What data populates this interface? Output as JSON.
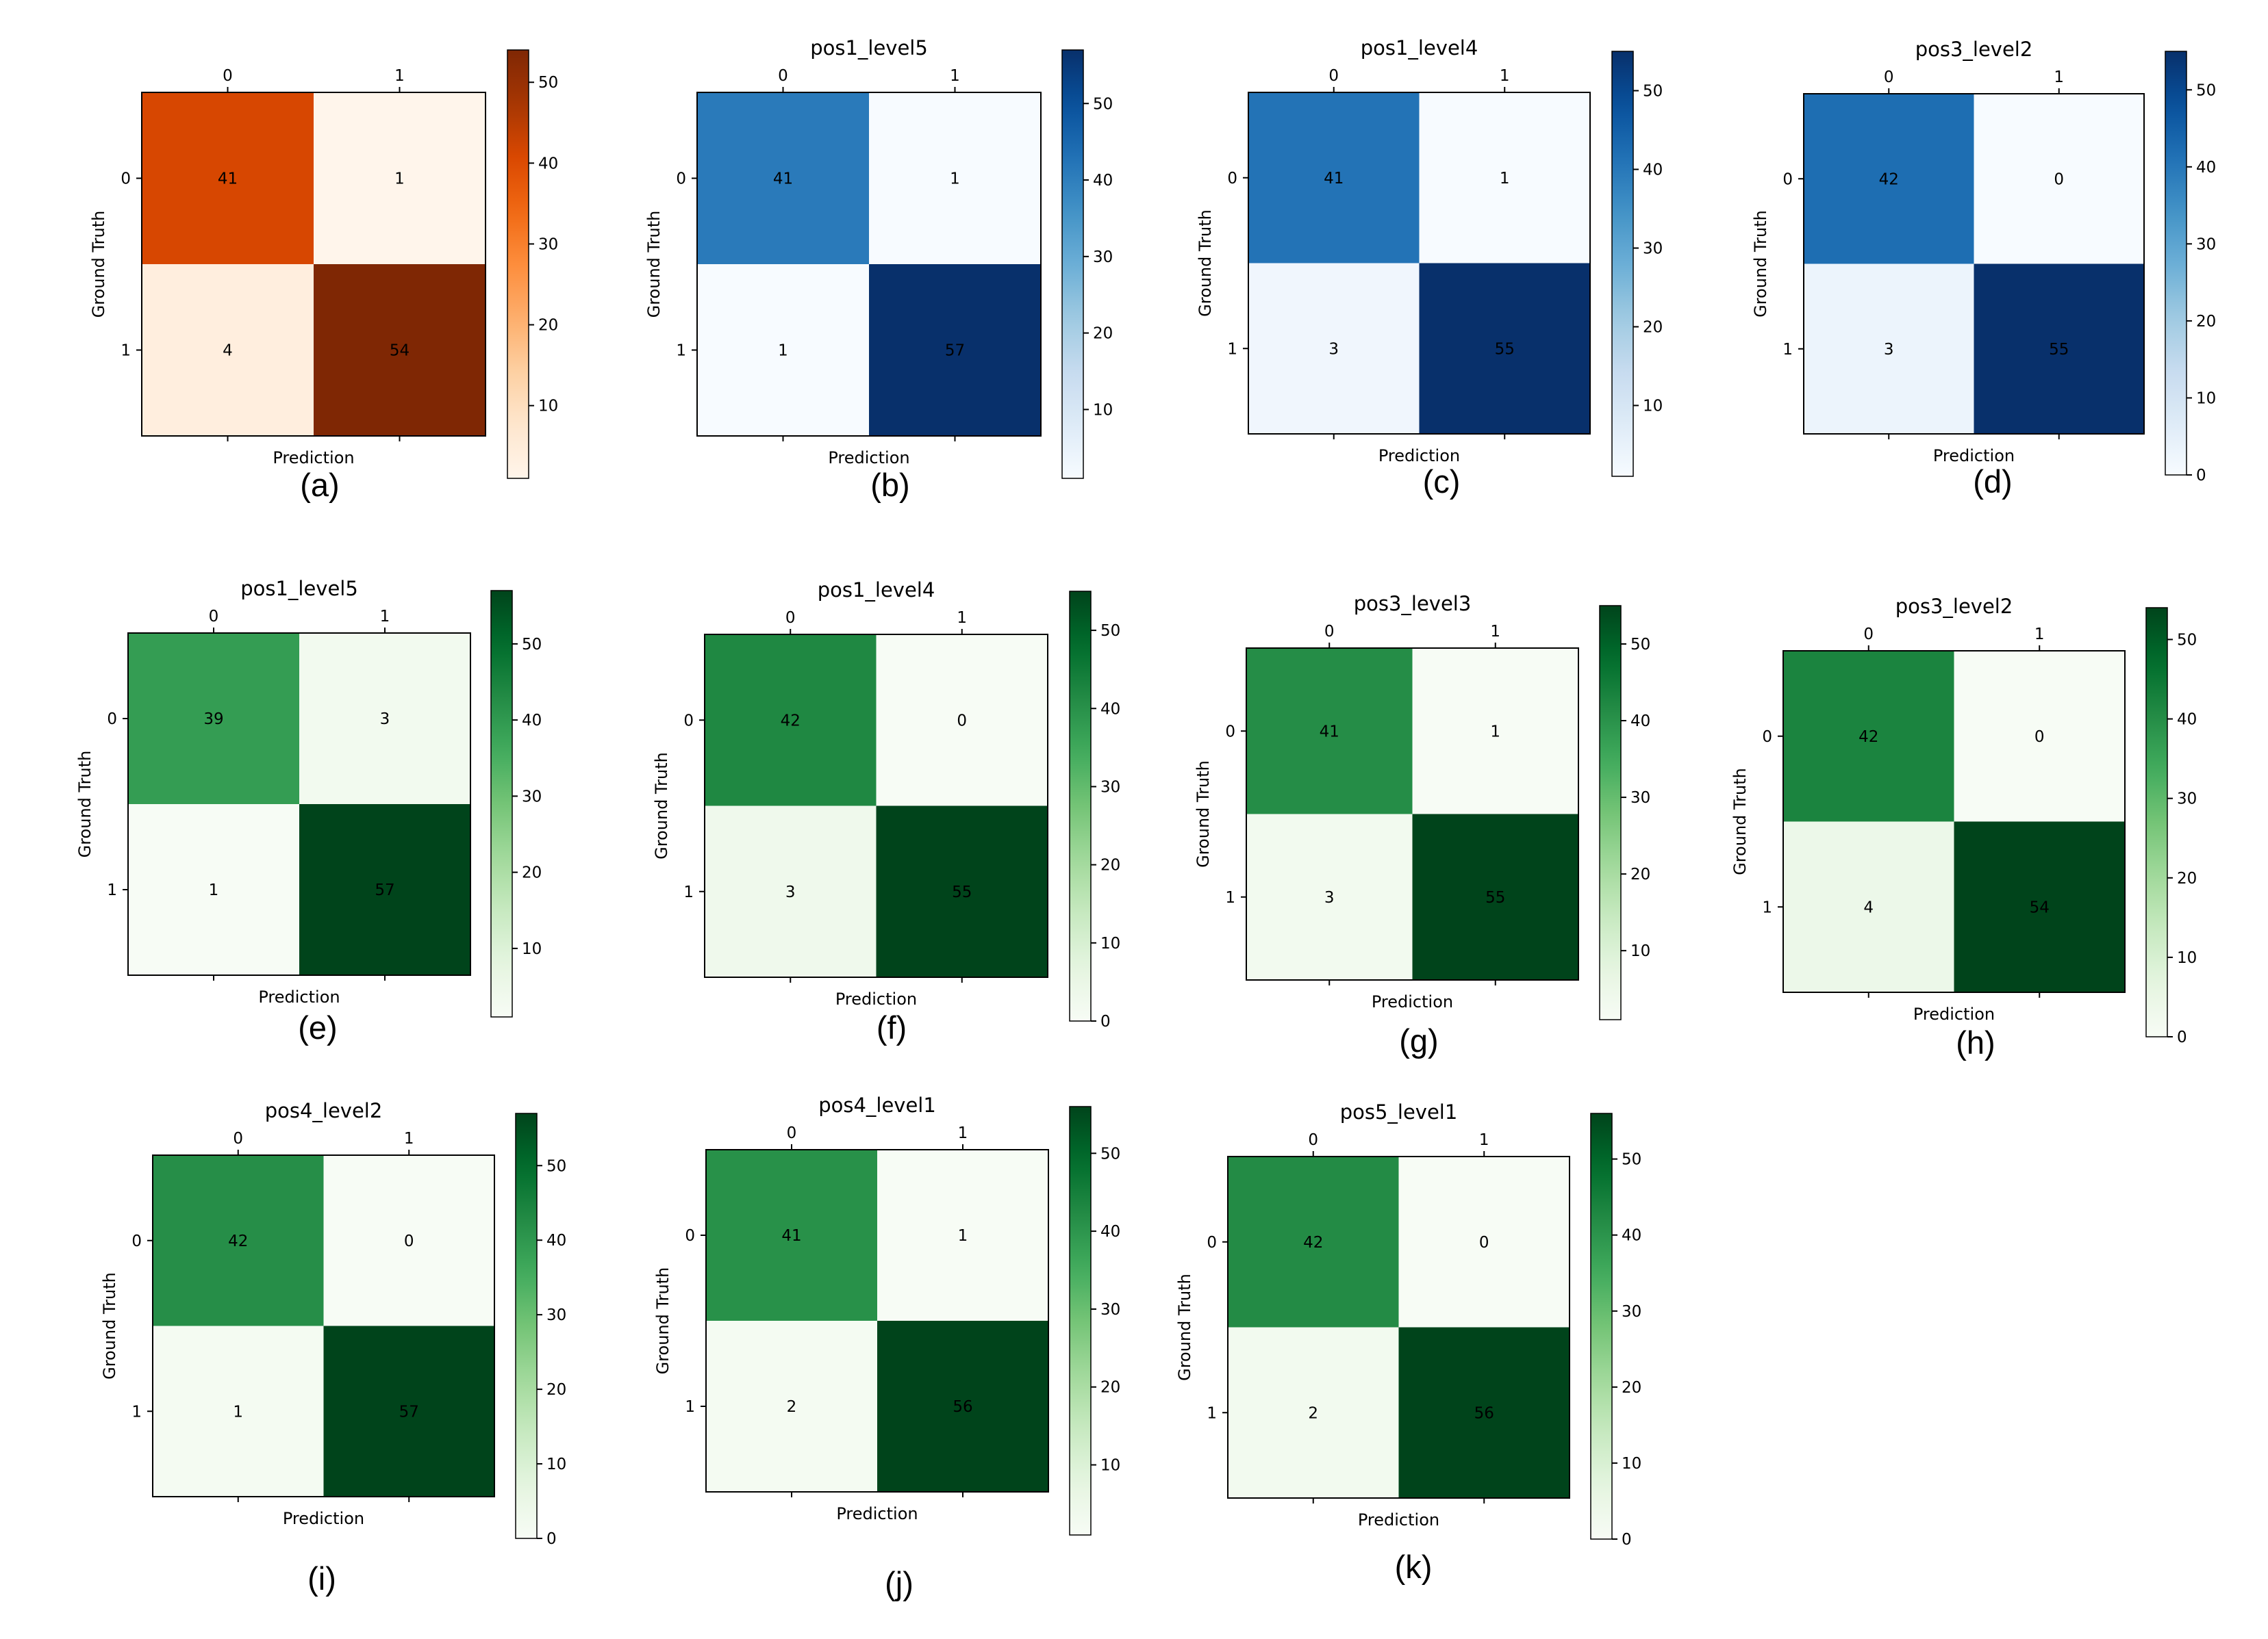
{
  "chart_data": [
    {
      "type": "heatmap",
      "panel": "a",
      "caption": "(a)",
      "title": "",
      "colormap": "Oranges",
      "xlabel": "Prediction",
      "ylabel": "Ground Truth",
      "x_categories": [
        "0",
        "1"
      ],
      "y_categories": [
        "0",
        "1"
      ],
      "values": [
        [
          41,
          1
        ],
        [
          4,
          54
        ]
      ],
      "colorbar": {
        "ticks": [
          10,
          20,
          30,
          40,
          50
        ],
        "range": [
          1,
          54
        ]
      }
    },
    {
      "type": "heatmap",
      "panel": "b",
      "caption": "(b)",
      "title": "pos1_level5",
      "colormap": "Blues",
      "xlabel": "Prediction",
      "ylabel": "Ground Truth",
      "x_categories": [
        "0",
        "1"
      ],
      "y_categories": [
        "0",
        "1"
      ],
      "values": [
        [
          41,
          1
        ],
        [
          1,
          57
        ]
      ],
      "colorbar": {
        "ticks": [
          10,
          20,
          30,
          40,
          50
        ],
        "range": [
          1,
          57
        ]
      }
    },
    {
      "type": "heatmap",
      "panel": "c",
      "caption": "(c)",
      "title": "pos1_level4",
      "colormap": "Blues",
      "xlabel": "Prediction",
      "ylabel": "Ground Truth",
      "x_categories": [
        "0",
        "1"
      ],
      "y_categories": [
        "0",
        "1"
      ],
      "values": [
        [
          41,
          1
        ],
        [
          3,
          55
        ]
      ],
      "colorbar": {
        "ticks": [
          10,
          20,
          30,
          40,
          50
        ],
        "range": [
          1,
          55
        ]
      }
    },
    {
      "type": "heatmap",
      "panel": "d",
      "caption": "(d)",
      "title": "pos3_level2",
      "colormap": "Blues",
      "xlabel": "Prediction",
      "ylabel": "Ground Truth",
      "x_categories": [
        "0",
        "1"
      ],
      "y_categories": [
        "0",
        "1"
      ],
      "values": [
        [
          42,
          0
        ],
        [
          3,
          55
        ]
      ],
      "colorbar": {
        "ticks": [
          0,
          10,
          20,
          30,
          40,
          50
        ],
        "range": [
          0,
          55
        ]
      }
    },
    {
      "type": "heatmap",
      "panel": "e",
      "caption": "(e)",
      "title": "pos1_level5",
      "colormap": "Greens",
      "xlabel": "Prediction",
      "ylabel": "Ground Truth",
      "x_categories": [
        "0",
        "1"
      ],
      "y_categories": [
        "0",
        "1"
      ],
      "values": [
        [
          39,
          3
        ],
        [
          1,
          57
        ]
      ],
      "colorbar": {
        "ticks": [
          10,
          20,
          30,
          40,
          50
        ],
        "range": [
          1,
          57
        ]
      }
    },
    {
      "type": "heatmap",
      "panel": "f",
      "caption": "(f)",
      "title": "pos1_level4",
      "colormap": "Greens",
      "xlabel": "Prediction",
      "ylabel": "Ground Truth",
      "x_categories": [
        "0",
        "1"
      ],
      "y_categories": [
        "0",
        "1"
      ],
      "values": [
        [
          42,
          0
        ],
        [
          3,
          55
        ]
      ],
      "colorbar": {
        "ticks": [
          0,
          10,
          20,
          30,
          40,
          50
        ],
        "range": [
          0,
          55
        ]
      }
    },
    {
      "type": "heatmap",
      "panel": "g",
      "caption": "(g)",
      "title": "pos3_level3",
      "colormap": "Greens",
      "xlabel": "Prediction",
      "ylabel": "Ground Truth",
      "x_categories": [
        "0",
        "1"
      ],
      "y_categories": [
        "0",
        "1"
      ],
      "values": [
        [
          41,
          1
        ],
        [
          3,
          55
        ]
      ],
      "colorbar": {
        "ticks": [
          10,
          20,
          30,
          40,
          50
        ],
        "range": [
          1,
          55
        ]
      }
    },
    {
      "type": "heatmap",
      "panel": "h",
      "caption": "(h)",
      "title": "pos3_level2",
      "colormap": "Greens",
      "xlabel": "Prediction",
      "ylabel": "Ground Truth",
      "x_categories": [
        "0",
        "1"
      ],
      "y_categories": [
        "0",
        "1"
      ],
      "values": [
        [
          42,
          0
        ],
        [
          4,
          54
        ]
      ],
      "colorbar": {
        "ticks": [
          0,
          10,
          20,
          30,
          40,
          50
        ],
        "range": [
          0,
          54
        ]
      }
    },
    {
      "type": "heatmap",
      "panel": "i",
      "caption": "(i)",
      "title": "pos4_level2",
      "colormap": "Greens",
      "xlabel": "Prediction",
      "ylabel": "Ground Truth",
      "x_categories": [
        "0",
        "1"
      ],
      "y_categories": [
        "0",
        "1"
      ],
      "values": [
        [
          42,
          0
        ],
        [
          1,
          57
        ]
      ],
      "colorbar": {
        "ticks": [
          0,
          10,
          20,
          30,
          40,
          50
        ],
        "range": [
          0,
          57
        ]
      }
    },
    {
      "type": "heatmap",
      "panel": "j",
      "caption": "(j)",
      "title": "pos4_level1",
      "colormap": "Greens",
      "xlabel": "Prediction",
      "ylabel": "Ground Truth",
      "x_categories": [
        "0",
        "1"
      ],
      "y_categories": [
        "0",
        "1"
      ],
      "values": [
        [
          41,
          1
        ],
        [
          2,
          56
        ]
      ],
      "colorbar": {
        "ticks": [
          10,
          20,
          30,
          40,
          50
        ],
        "range": [
          1,
          56
        ]
      }
    },
    {
      "type": "heatmap",
      "panel": "k",
      "caption": "(k)",
      "title": "pos5_level1",
      "colormap": "Greens",
      "xlabel": "Prediction",
      "ylabel": "Ground Truth",
      "x_categories": [
        "0",
        "1"
      ],
      "y_categories": [
        "0",
        "1"
      ],
      "values": [
        [
          42,
          0
        ],
        [
          2,
          56
        ]
      ],
      "colorbar": {
        "ticks": [
          0,
          10,
          20,
          30,
          40,
          50
        ],
        "range": [
          0,
          56
        ]
      }
    }
  ]
}
